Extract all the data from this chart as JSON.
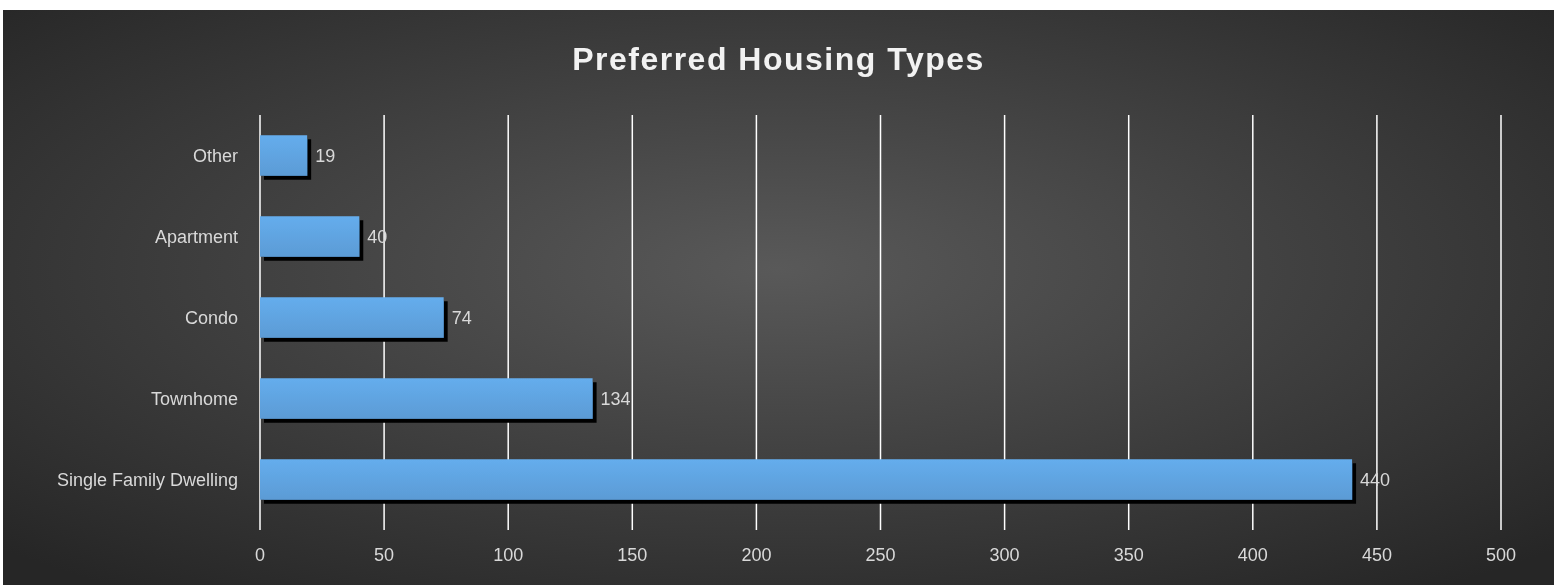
{
  "chart_data": {
    "type": "bar",
    "orientation": "horizontal",
    "title": "Preferred Housing Types",
    "categories": [
      "Other",
      "Apartment",
      "Condo",
      "Townhome",
      "Single Family Dwelling"
    ],
    "values": [
      19,
      40,
      74,
      134,
      440
    ],
    "color": "#5b9bd5",
    "xlim": [
      0,
      500
    ],
    "xticks": [
      0,
      50,
      100,
      150,
      200,
      250,
      300,
      350,
      400,
      450,
      500
    ],
    "grid": "x",
    "data_labels": true
  }
}
